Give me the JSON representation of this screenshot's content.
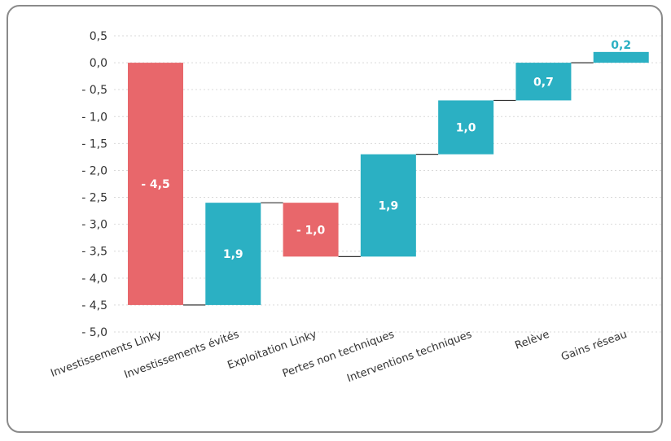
{
  "chart_data": {
    "type": "bar",
    "subtype": "waterfall",
    "categories": [
      "Investissements Linky",
      "Investissements évités",
      "Exploitation Linky",
      "Pertes non techniques",
      "Interventions techniques",
      "Relève",
      "Gains réseau"
    ],
    "values": [
      -4.5,
      1.9,
      -1.0,
      1.9,
      1.0,
      0.7,
      0.2
    ],
    "value_labels": [
      "- 4,5",
      "1,9",
      "- 1,0",
      "1,9",
      "1,0",
      "0,7",
      "0,2"
    ],
    "y_ticks": [
      0.5,
      0.0,
      -0.5,
      -1.0,
      -1.5,
      -2.0,
      -2.5,
      -3.0,
      -3.5,
      -4.0,
      -4.5,
      -5.0
    ],
    "y_tick_labels": [
      "0,5",
      "0,0",
      "- 0,5",
      "- 1,0",
      "- 1,5",
      "- 2,0",
      "- 2,5",
      "- 3,0",
      "- 3,5",
      "- 4,0",
      "- 4,5",
      "- 5,0"
    ],
    "ylim": [
      -5.0,
      0.5
    ],
    "grid": true,
    "colors": {
      "negative": "#e8676b",
      "positive": "#2bb0c3",
      "label_outside": "#2bb0c3"
    },
    "title": "",
    "xlabel": "",
    "ylabel": ""
  }
}
